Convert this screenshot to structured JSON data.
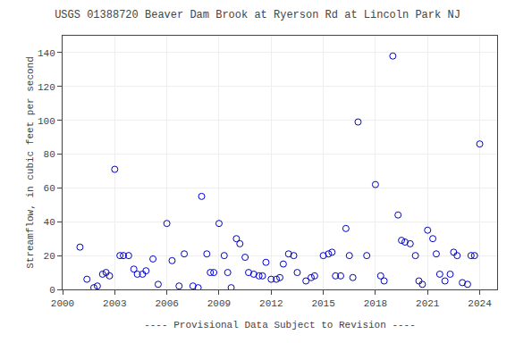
{
  "chart_data": {
    "type": "scatter",
    "title": "USGS 01388720 Beaver Dam Brook at Ryerson Rd at Lincoln Park NJ",
    "ylabel": "Streamflow, in cubic feet per second",
    "xlabel": "---- Provisional Data Subject to Revision ----",
    "x": [
      2001.0,
      2001.4,
      2001.8,
      2002.0,
      2002.3,
      2002.5,
      2002.7,
      2003.0,
      2003.3,
      2003.5,
      2003.8,
      2004.1,
      2004.3,
      2004.6,
      2004.8,
      2005.2,
      2005.5,
      2006.0,
      2006.3,
      2006.7,
      2007.0,
      2007.5,
      2007.8,
      2008.0,
      2008.3,
      2008.5,
      2008.7,
      2009.0,
      2009.3,
      2009.5,
      2009.7,
      2010.0,
      2010.2,
      2010.5,
      2010.7,
      2011.0,
      2011.3,
      2011.5,
      2011.7,
      2012.0,
      2012.3,
      2012.5,
      2012.7,
      2013.0,
      2013.3,
      2013.5,
      2014.0,
      2014.3,
      2014.5,
      2015.0,
      2015.3,
      2015.5,
      2015.7,
      2016.0,
      2016.3,
      2016.5,
      2016.7,
      2017.0,
      2017.5,
      2018.0,
      2018.3,
      2018.5,
      2019.0,
      2019.3,
      2019.5,
      2019.7,
      2020.0,
      2020.3,
      2020.5,
      2020.7,
      2021.0,
      2021.3,
      2021.5,
      2021.7,
      2022.0,
      2022.3,
      2022.5,
      2022.7,
      2023.0,
      2023.3,
      2023.5,
      2023.7,
      2024.0
    ],
    "values": [
      25,
      6,
      1,
      2,
      9,
      10,
      8,
      71,
      20,
      20,
      20,
      12,
      9,
      9,
      11,
      18,
      3,
      39,
      17,
      2,
      21,
      2,
      1,
      55,
      21,
      10,
      10,
      39,
      20,
      10,
      1,
      30,
      27,
      19,
      10,
      9,
      8,
      8,
      16,
      6,
      6,
      7,
      15,
      21,
      20,
      10,
      5,
      7,
      8,
      20,
      21,
      22,
      8,
      8,
      36,
      20,
      7,
      99,
      20,
      62,
      8,
      5,
      138,
      44,
      29,
      28,
      27,
      20,
      5,
      3,
      35,
      30,
      21,
      9,
      5,
      9,
      22,
      20,
      4,
      3,
      20,
      20,
      86
    ],
    "color": "#0000CC",
    "marker": "circle-open",
    "xlim": [
      2000,
      2025
    ],
    "ylim": [
      0,
      150
    ],
    "xticks": [
      2000,
      2003,
      2006,
      2009,
      2012,
      2015,
      2018,
      2021,
      2024
    ],
    "yticks": [
      0,
      20,
      40,
      60,
      80,
      100,
      120,
      140
    ],
    "grid": true
  }
}
